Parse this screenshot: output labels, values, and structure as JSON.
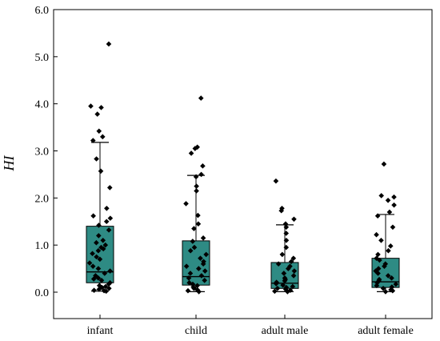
{
  "chart_data": {
    "type": "box",
    "title": "",
    "xlabel": "",
    "ylabel": "HI",
    "ylim": [
      0,
      6
    ],
    "yticks": [
      "0.0",
      "1.0",
      "2.0",
      "3.0",
      "4.0",
      "5.0",
      "6.0"
    ],
    "grid": false,
    "box_color": "#2e8b84",
    "point_color": "#000000",
    "categories": [
      "infant",
      "child",
      "adult male",
      "adult female"
    ],
    "boxes": [
      {
        "category": "infant",
        "whisker_low": 0.02,
        "q1": 0.2,
        "median": 0.43,
        "q3": 1.4,
        "whisker_high": 3.18,
        "points": [
          5.27,
          3.95,
          3.92,
          3.78,
          3.42,
          3.3,
          3.22,
          2.83,
          2.57,
          2.22,
          1.78,
          1.62,
          1.57,
          1.5,
          1.42,
          1.32,
          1.2,
          1.1,
          1.05,
          1.0,
          0.95,
          0.92,
          0.88,
          0.82,
          0.75,
          0.7,
          0.62,
          0.55,
          0.5,
          0.45,
          0.4,
          0.35,
          0.3,
          0.28,
          0.25,
          0.2,
          0.17,
          0.14,
          0.12,
          0.1,
          0.08,
          0.06,
          0.04,
          0.03,
          0.02
        ]
      },
      {
        "category": "child",
        "whisker_low": 0.01,
        "q1": 0.15,
        "median": 0.33,
        "q3": 1.09,
        "whisker_high": 2.48,
        "points": [
          4.12,
          3.08,
          3.05,
          2.95,
          2.68,
          2.5,
          2.45,
          2.25,
          2.15,
          1.88,
          1.63,
          1.45,
          1.35,
          1.15,
          1.08,
          0.95,
          0.88,
          0.8,
          0.72,
          0.65,
          0.6,
          0.55,
          0.5,
          0.45,
          0.4,
          0.35,
          0.3,
          0.25,
          0.2,
          0.17,
          0.14,
          0.11,
          0.08,
          0.05,
          0.03,
          0.01
        ]
      },
      {
        "category": "adult male",
        "whisker_low": 0.01,
        "q1": 0.08,
        "median": 0.19,
        "q3": 0.63,
        "whisker_high": 1.43,
        "points": [
          2.36,
          1.78,
          1.73,
          1.55,
          1.45,
          1.38,
          1.25,
          1.1,
          0.95,
          0.8,
          0.72,
          0.65,
          0.6,
          0.55,
          0.5,
          0.45,
          0.4,
          0.35,
          0.3,
          0.27,
          0.24,
          0.21,
          0.18,
          0.15,
          0.12,
          0.1,
          0.08,
          0.06,
          0.04,
          0.02,
          0.01
        ]
      },
      {
        "category": "adult female",
        "whisker_low": 0.01,
        "q1": 0.1,
        "median": 0.22,
        "q3": 0.72,
        "whisker_high": 1.65,
        "points": [
          2.72,
          2.05,
          2.02,
          1.95,
          1.85,
          1.7,
          1.62,
          1.38,
          1.22,
          1.1,
          0.98,
          0.88,
          0.8,
          0.72,
          0.68,
          0.6,
          0.55,
          0.5,
          0.45,
          0.4,
          0.35,
          0.3,
          0.27,
          0.24,
          0.2,
          0.17,
          0.14,
          0.11,
          0.08,
          0.05,
          0.03,
          0.01
        ]
      }
    ]
  }
}
